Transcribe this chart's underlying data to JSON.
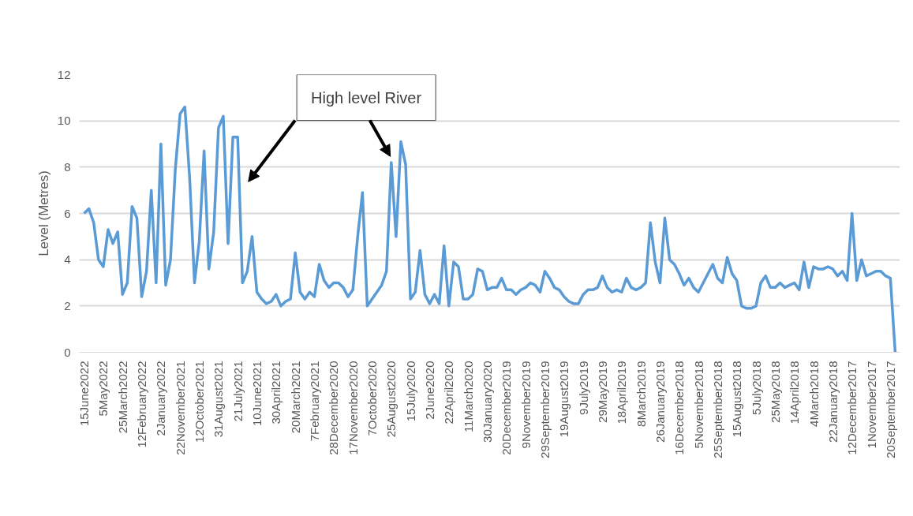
{
  "chart_data": {
    "type": "line",
    "ylabel": "Level (Metres)",
    "categories": [
      "15June2022",
      null,
      null,
      null,
      "5May2022",
      null,
      null,
      null,
      "25March2022",
      null,
      null,
      null,
      "12February2022",
      null,
      null,
      null,
      "2January2022",
      null,
      null,
      null,
      "22November2021",
      null,
      null,
      null,
      "12October2021",
      null,
      null,
      null,
      "31August2021",
      null,
      null,
      null,
      "21July2021",
      null,
      null,
      null,
      "10June2021",
      null,
      null,
      null,
      "30April2021",
      null,
      null,
      null,
      "20March2021",
      null,
      null,
      null,
      "7February2021",
      null,
      null,
      null,
      "28December2020",
      null,
      null,
      null,
      "17November2020",
      null,
      null,
      null,
      "7October2020",
      null,
      null,
      null,
      "25August2020",
      null,
      null,
      null,
      "15July2020",
      null,
      null,
      null,
      "2June2020",
      null,
      null,
      null,
      "22April2020",
      null,
      null,
      null,
      "11March2020",
      null,
      null,
      null,
      "30January2020",
      null,
      null,
      null,
      "20December2019",
      null,
      null,
      null,
      "9November2019",
      null,
      null,
      null,
      "29September2019",
      null,
      null,
      null,
      "19August2019",
      null,
      null,
      null,
      "9July2019",
      null,
      null,
      null,
      "29May2019",
      null,
      null,
      null,
      "18April2019",
      null,
      null,
      null,
      "8March2019",
      null,
      null,
      null,
      "26January2019",
      null,
      null,
      null,
      "16December2018",
      null,
      null,
      null,
      "5November2018",
      null,
      null,
      null,
      "25September2018",
      null,
      null,
      null,
      "15August2018",
      null,
      null,
      null,
      "5July2018",
      null,
      null,
      null,
      "25May2018",
      null,
      null,
      null,
      "14April2018",
      null,
      null,
      null,
      "4March2018",
      null,
      null,
      null,
      "22January2018",
      null,
      null,
      null,
      "12December2017",
      null,
      null,
      null,
      "1November2017",
      null,
      null,
      null,
      "20September2017",
      null
    ],
    "series": [
      {
        "color": "#5b9bd5",
        "values": [
          6.0,
          6.2,
          5.6,
          4.0,
          3.7,
          5.3,
          4.7,
          5.2,
          2.5,
          3.0,
          6.3,
          5.8,
          2.4,
          3.5,
          7.0,
          3.0,
          9.0,
          2.9,
          4.0,
          7.9,
          10.3,
          10.6,
          7.5,
          3.0,
          4.8,
          8.7,
          3.6,
          5.2,
          9.7,
          10.2,
          4.7,
          9.3,
          9.3,
          3.0,
          3.5,
          5.0,
          2.6,
          2.3,
          2.1,
          2.2,
          2.5,
          2.0,
          2.2,
          2.3,
          4.3,
          2.6,
          2.3,
          2.6,
          2.4,
          3.8,
          3.1,
          2.8,
          3.0,
          3.0,
          2.8,
          2.4,
          2.7,
          5.0,
          6.9,
          2.0,
          2.3,
          2.6,
          2.9,
          3.5,
          8.2,
          5.0,
          9.1,
          8.1,
          2.3,
          2.6,
          4.4,
          2.5,
          2.1,
          2.5,
          2.1,
          4.6,
          2.0,
          3.9,
          3.7,
          2.3,
          2.3,
          2.5,
          3.6,
          3.5,
          2.7,
          2.8,
          2.8,
          3.2,
          2.7,
          2.7,
          2.5,
          2.7,
          2.8,
          3.0,
          2.9,
          2.6,
          3.5,
          3.2,
          2.8,
          2.7,
          2.4,
          2.2,
          2.1,
          2.1,
          2.5,
          2.7,
          2.7,
          2.8,
          3.3,
          2.8,
          2.6,
          2.7,
          2.6,
          3.2,
          2.8,
          2.7,
          2.8,
          3.0,
          5.6,
          3.9,
          3.0,
          5.8,
          4.0,
          3.8,
          3.4,
          2.9,
          3.2,
          2.8,
          2.6,
          3.0,
          3.4,
          3.8,
          3.2,
          3.0,
          4.1,
          3.4,
          3.1,
          2.0,
          1.9,
          1.9,
          2.0,
          3.0,
          3.3,
          2.8,
          2.8,
          3.0,
          2.8,
          2.9,
          3.0,
          2.7,
          3.9,
          2.8,
          3.7,
          3.6,
          3.6,
          3.7,
          3.6,
          3.3,
          3.5,
          3.1,
          6.0,
          3.1,
          4.0,
          3.3,
          3.4,
          3.5,
          3.5,
          3.3,
          3.2,
          0.0
        ]
      }
    ],
    "ylim": [
      0,
      12
    ],
    "yticks": [
      0,
      2,
      4,
      6,
      8,
      10,
      12
    ],
    "grid": "y",
    "annotations": [
      "High level River"
    ]
  }
}
